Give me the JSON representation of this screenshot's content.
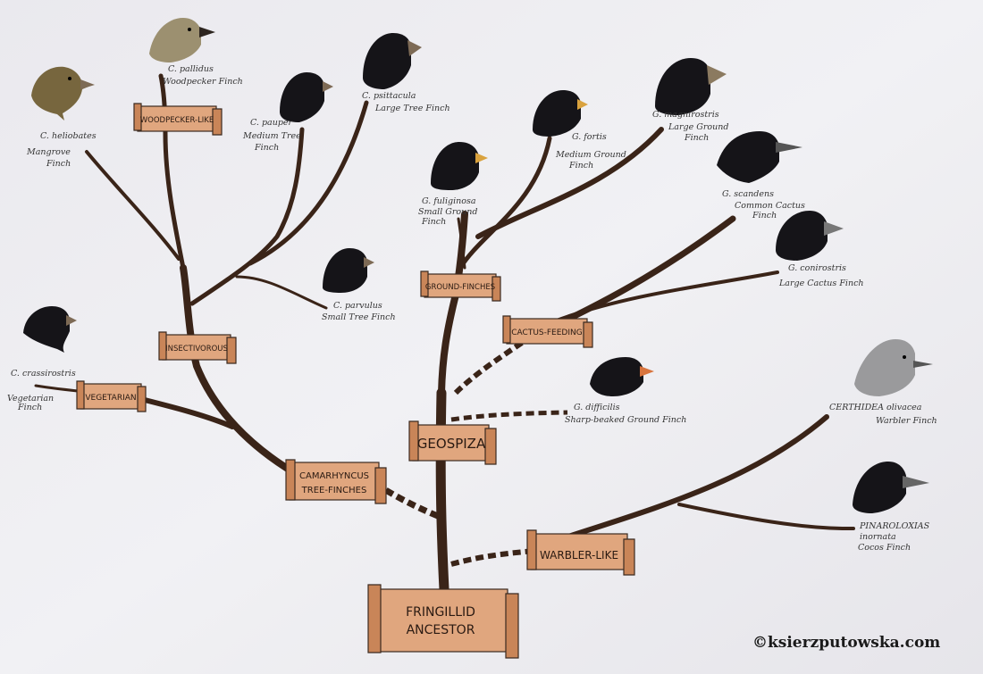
{
  "banners": {
    "root": [
      "FRINGILLID",
      "ANCESTOR"
    ],
    "geospiza": "GEOSPIZA",
    "camarhyncus": [
      "CAMARHYNCUS",
      "TREE-FINCHES"
    ],
    "warbler": "WARBLER-LIKE",
    "vegetarian": "VEGETARIAN",
    "insectivorous": "INSECTIVOROUS",
    "woodpecker": "WOODPECKER-LIKE",
    "ground": "GROUND-FINCHES",
    "cactus": "CACTUS-FEEDING"
  },
  "species": {
    "heliobates": [
      "C. heliobates",
      "Mangrove",
      "Finch"
    ],
    "pallidus": [
      "C. pallidus",
      "Woodpecker Finch"
    ],
    "pauper": [
      "C. pauper",
      "Medium Tree",
      "Finch"
    ],
    "psittacula": [
      "C. psittacula",
      "Large Tree Finch"
    ],
    "parvulus": [
      "C. parvulus",
      "Small Tree Finch"
    ],
    "crassirostris": [
      "C. crassirostris",
      "Vegetarian",
      "Finch"
    ],
    "fuliginosa": [
      "G. fuliginosa",
      "Small Ground",
      "Finch"
    ],
    "fortis": [
      "G. fortis",
      "Medium Ground",
      "Finch"
    ],
    "magnirostris": [
      "G. magnirostris",
      "Large Ground",
      "Finch"
    ],
    "scandens": [
      "G. scandens",
      "Common Cactus",
      "Finch"
    ],
    "conirostris": [
      "G. conirostris",
      "Large Cactus Finch"
    ],
    "difficilis": [
      "G. difficilis",
      "Sharp-beaked Ground Finch"
    ],
    "olivacea": [
      "CERTHIDEA olivacea",
      "Warbler Finch"
    ],
    "inornata": [
      "PINAROLOXIAS",
      "inornata",
      "Cocos Finch"
    ]
  },
  "credit": "©ksierzputowska.com",
  "colors": {
    "branch": "#3a2418",
    "banner": "#e0a67e",
    "paper": "#eeedf1"
  },
  "icons": [
    "finch-head-icon",
    "scroll-banner-icon"
  ]
}
